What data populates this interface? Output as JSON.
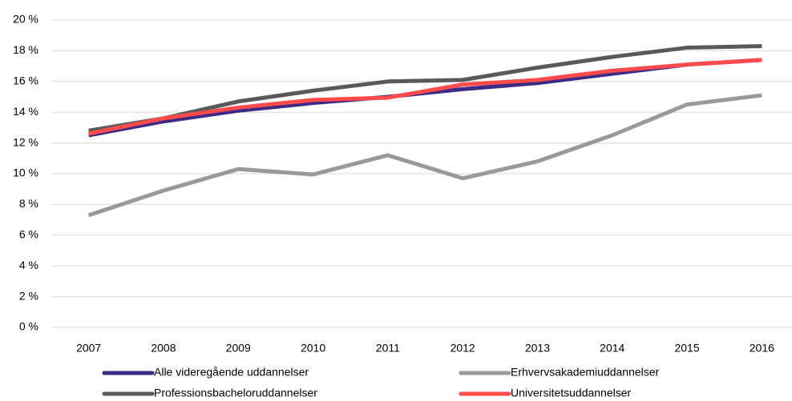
{
  "chart_data": {
    "type": "line",
    "categories": [
      "2007",
      "2008",
      "2009",
      "2010",
      "2011",
      "2012",
      "2013",
      "2014",
      "2015",
      "2016"
    ],
    "series": [
      {
        "name": "Alle videregående uddannelser",
        "color": "#3c2a86",
        "values": [
          12.5,
          13.4,
          14.1,
          14.6,
          15.0,
          15.5,
          15.9,
          16.5,
          17.1,
          17.4
        ]
      },
      {
        "name": "Erhvervsakademiuddannelser",
        "color": "#999999",
        "values": [
          7.3,
          8.9,
          10.3,
          9.95,
          11.2,
          9.7,
          10.8,
          12.5,
          14.5,
          15.1
        ]
      },
      {
        "name": "Professionsbacheloruddannelser",
        "color": "#595959",
        "values": [
          12.8,
          13.6,
          14.7,
          15.4,
          16.0,
          16.1,
          16.9,
          17.6,
          18.2,
          18.3
        ]
      },
      {
        "name": "Universitetsuddannelser",
        "color": "#ff4b4b",
        "values": [
          12.6,
          13.6,
          14.3,
          14.8,
          14.95,
          15.8,
          16.1,
          16.7,
          17.1,
          17.4
        ]
      }
    ],
    "ylim": [
      0,
      20
    ],
    "yticks": [
      {
        "value": 0,
        "label": "0 %"
      },
      {
        "value": 2,
        "label": "2 %"
      },
      {
        "value": 4,
        "label": "4 %"
      },
      {
        "value": 6,
        "label": "6 %"
      },
      {
        "value": 8,
        "label": "8 %"
      },
      {
        "value": 10,
        "label": "10 %"
      },
      {
        "value": 12,
        "label": "12 %"
      },
      {
        "value": 14,
        "label": "14 %"
      },
      {
        "value": 16,
        "label": "16 %"
      },
      {
        "value": 18,
        "label": "18 %"
      },
      {
        "value": 20,
        "label": "20 %"
      }
    ],
    "grid": true,
    "legend": "bottom"
  }
}
